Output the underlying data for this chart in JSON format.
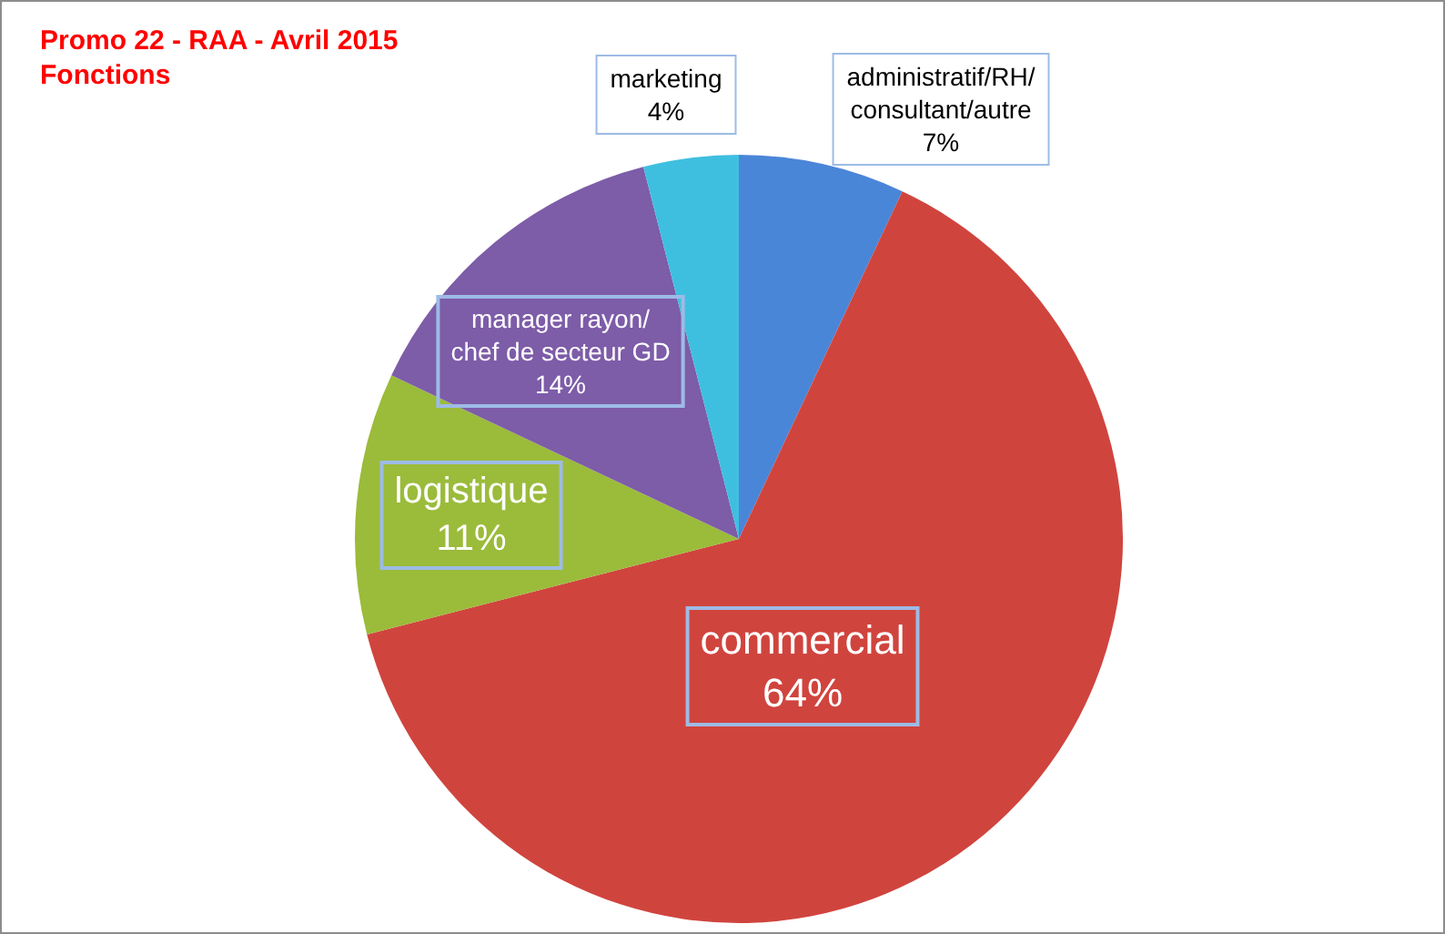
{
  "chart_data": {
    "type": "pie",
    "title": "Promo 22 - RAA - Avril 2015",
    "subtitle": "Fonctions",
    "categories": [
      "administratif/RH/consultant/autre",
      "commercial",
      "logistique",
      "manager rayon/chef de secteur GD",
      "marketing"
    ],
    "values": [
      7,
      64,
      11,
      14,
      4
    ],
    "value_labels": [
      "7%",
      "64%",
      "11%",
      "14%",
      "4%"
    ],
    "colors": [
      "#4a86d8",
      "#d0443e",
      "#9bbb3b",
      "#7d5ca8",
      "#3fbfdf"
    ]
  }
}
